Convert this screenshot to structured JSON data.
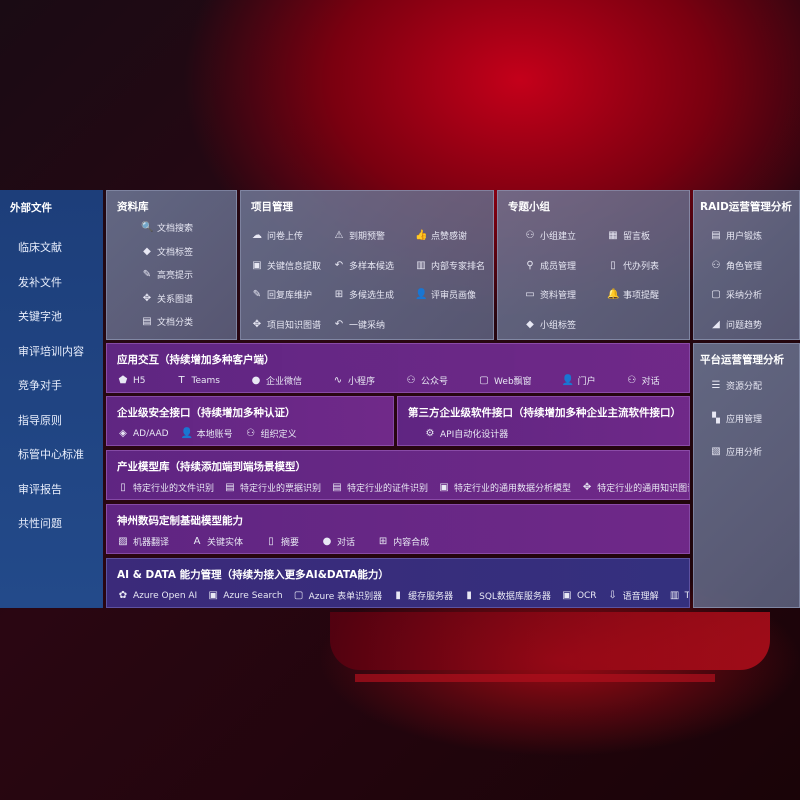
{
  "external": {
    "title": "外部文件",
    "items": [
      "临床文献",
      "发补文件",
      "关键字池",
      "审评培训内容",
      "竞争对手",
      "指导原则",
      "标管中心标准",
      "审评报告",
      "共性问题"
    ]
  },
  "library": {
    "title": "资料库",
    "items": [
      {
        "icon": "doc-search-icon",
        "label": "文档搜索"
      },
      {
        "icon": "tag-icon",
        "label": "文档标签"
      },
      {
        "icon": "pen-icon",
        "label": "高亮提示"
      },
      {
        "icon": "graph-icon",
        "label": "关系图谱"
      },
      {
        "icon": "doc-classify-icon",
        "label": "文档分类"
      }
    ]
  },
  "project": {
    "title": "项目管理",
    "items": [
      {
        "icon": "cloud-upload-icon",
        "label": "问卷上传"
      },
      {
        "icon": "alarm-icon",
        "label": "到期预警"
      },
      {
        "icon": "thumbs-up-icon",
        "label": "点赞感谢"
      },
      {
        "icon": "extract-icon",
        "label": "关键信息提取"
      },
      {
        "icon": "reply-icon",
        "label": "多样本候选"
      },
      {
        "icon": "ranking-icon",
        "label": "内部专家排名"
      },
      {
        "icon": "pen-icon",
        "label": "回复库维护"
      },
      {
        "icon": "puzzle-icon",
        "label": "多候选生成"
      },
      {
        "icon": "user-icon",
        "label": "评审员画像"
      },
      {
        "icon": "graph-icon",
        "label": "项目知识图谱"
      },
      {
        "icon": "reply-icon",
        "label": "一键采纳"
      }
    ]
  },
  "group": {
    "title": "专题小组",
    "items": [
      {
        "icon": "group-icon",
        "label": "小组建立"
      },
      {
        "icon": "bbs-icon",
        "label": "留言板"
      },
      {
        "icon": "add-user-icon",
        "label": "成员管理"
      },
      {
        "icon": "clipboard-icon",
        "label": "代办列表"
      },
      {
        "icon": "folder-icon",
        "label": "资料管理"
      },
      {
        "icon": "bell-icon",
        "label": "事项提醒"
      },
      {
        "icon": "tag-icon",
        "label": "小组标签"
      }
    ]
  },
  "raid": {
    "title": "RAID运营管理分析",
    "items": [
      {
        "icon": "id-card-icon",
        "label": "用户锻炼"
      },
      {
        "icon": "users-icon",
        "label": "角色管理"
      },
      {
        "icon": "qa-icon",
        "label": "采纳分析"
      },
      {
        "icon": "trend-icon",
        "label": "问题趋势"
      }
    ]
  },
  "platform": {
    "title": "平台运营管理分析",
    "items": [
      {
        "icon": "list-icon",
        "label": "资源分配"
      },
      {
        "icon": "apps-icon",
        "label": "应用管理"
      },
      {
        "icon": "chart-icon",
        "label": "应用分析"
      }
    ]
  },
  "interaction": {
    "title": "应用交互（持续增加多种客户端）",
    "items": [
      {
        "icon": "html5-icon",
        "label": "H5"
      },
      {
        "icon": "teams-icon",
        "label": "Teams"
      },
      {
        "icon": "wecom-icon",
        "label": "企业微信"
      },
      {
        "icon": "miniprogram-icon",
        "label": "小程序"
      },
      {
        "icon": "official-account-icon",
        "label": "公众号"
      },
      {
        "icon": "window-icon",
        "label": "Web飘窗"
      },
      {
        "icon": "portal-icon",
        "label": "门户"
      },
      {
        "icon": "chat-users-icon",
        "label": "对话"
      }
    ]
  },
  "security": {
    "title": "企业级安全接口（持续增加多种认证）",
    "items": [
      {
        "icon": "ad-icon",
        "label": "AD/AAD"
      },
      {
        "icon": "local-account-icon",
        "label": "本地账号"
      },
      {
        "icon": "org-icon",
        "label": "组织定义"
      }
    ]
  },
  "thirdparty": {
    "title": "第三方企业级软件接口（持续增加多种企业主流软件接口）",
    "items": [
      {
        "icon": "gear-icon",
        "label": "API自动化设计器"
      }
    ]
  },
  "industry": {
    "title": "产业模型库（持续添加端到端场景模型）",
    "items": [
      {
        "icon": "file-icon",
        "label": "特定行业的文件识别"
      },
      {
        "icon": "receipt-icon",
        "label": "特定行业的票据识别"
      },
      {
        "icon": "id-card-icon",
        "label": "特定行业的证件识别"
      },
      {
        "icon": "data-analysis-icon",
        "label": "特定行业的通用数据分析模型"
      },
      {
        "icon": "graph-icon",
        "label": "特定行业的通用知识图谱模型"
      }
    ]
  },
  "base": {
    "title": "神州数码定制基础模型能力",
    "items": [
      {
        "icon": "translate-icon",
        "label": "机器翻译"
      },
      {
        "icon": "entity-icon",
        "label": "关键实体"
      },
      {
        "icon": "summary-icon",
        "label": "摘要"
      },
      {
        "icon": "chat-icon",
        "label": "对话"
      },
      {
        "icon": "puzzle-icon",
        "label": "内容合成"
      }
    ]
  },
  "ai": {
    "title": "AI & DATA 能力管理（持续为接入更多AI&DATA能力）",
    "items": [
      {
        "icon": "openai-icon",
        "label": "Azure Open AI"
      },
      {
        "icon": "search-doc-icon",
        "label": "Azure Search"
      },
      {
        "icon": "form-recognizer-icon",
        "label": "Azure 表单识别器"
      },
      {
        "icon": "cache-icon",
        "label": "缓存服务器"
      },
      {
        "icon": "sql-icon",
        "label": "SQL数据库服务器"
      },
      {
        "icon": "ocr-icon",
        "label": "OCR"
      },
      {
        "icon": "speech-icon",
        "label": "语音理解"
      },
      {
        "icon": "tts-icon",
        "label": "TTS"
      }
    ]
  }
}
